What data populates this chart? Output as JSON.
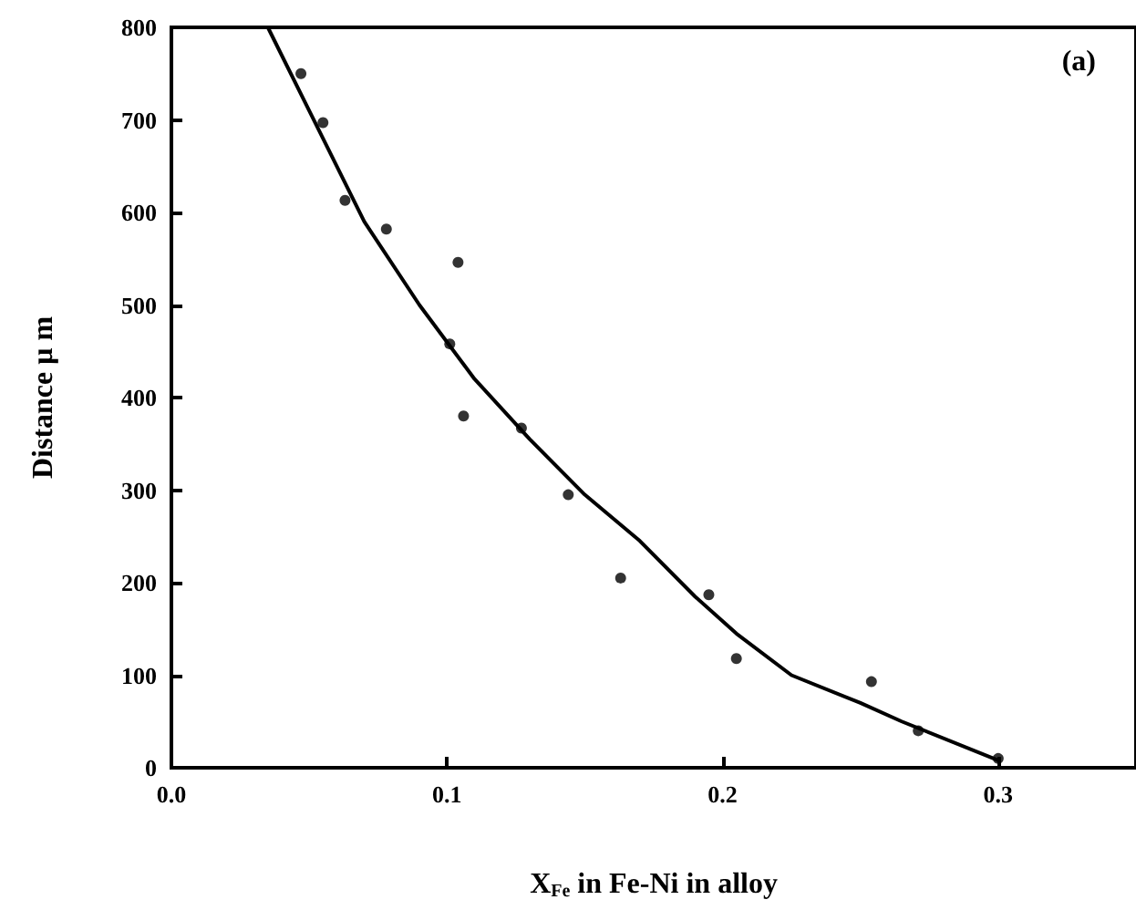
{
  "chart_data": {
    "type": "scatter",
    "xlabel": "X$_{Fe}$ in Fe-Ni in alloy",
    "ylabel": "Distance μ m",
    "annotations": [
      "(a)"
    ],
    "xlim": [
      0,
      0.35
    ],
    "xticks": [
      {
        "value": 0,
        "label": "0.0"
      },
      0.1,
      0.2,
      0.3
    ],
    "ylim": [
      0,
      800
    ],
    "yticks": [
      0,
      100,
      200,
      300,
      400,
      500,
      600,
      700,
      800
    ],
    "grid": false,
    "marker": "circle",
    "series": [
      {
        "color": "#000000",
        "x": [
          0.047,
          0.055,
          0.063,
          0.078,
          0.101,
          0.104,
          0.106,
          0.127,
          0.144,
          0.163,
          0.195,
          0.205,
          0.254,
          0.271,
          0.3
        ],
        "values": [
          750,
          697,
          613,
          582,
          458,
          546,
          380,
          367,
          295,
          205,
          187,
          118,
          93,
          40,
          10
        ]
      },
      {
        "type": "line",
        "color": "#000000",
        "marker": "none",
        "line_style": "solid",
        "x": [
          0.035,
          0.05,
          0.07,
          0.09,
          0.11,
          0.13,
          0.15,
          0.17,
          0.19,
          0.205,
          0.225,
          0.25,
          0.265,
          0.3
        ],
        "values": [
          800,
          710,
          590,
          500,
          420,
          355,
          295,
          245,
          185,
          145,
          100,
          70,
          50,
          8
        ]
      }
    ]
  }
}
